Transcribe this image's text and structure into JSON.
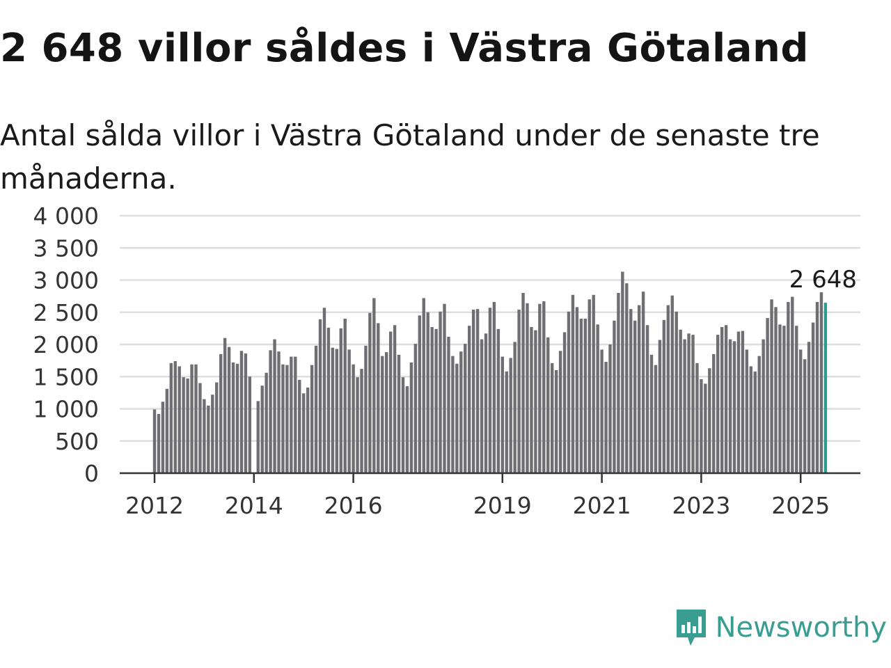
{
  "title": "2 648 villor såldes i Västra Götaland",
  "subtitle": "Antal sålda villor i Västra Götaland under de senaste tre månaderna.",
  "brand": "Newsworthy",
  "colors": {
    "bar": "#6f6e73",
    "highlight": "#2a9d8f",
    "brand": "#3a9d91",
    "grid": "#dedede"
  },
  "chart_data": {
    "type": "bar",
    "start": "2012-01",
    "values": [
      990,
      920,
      1110,
      1310,
      1710,
      1740,
      1660,
      1490,
      1470,
      1690,
      1690,
      1400,
      1150,
      1050,
      1220,
      1410,
      1850,
      2100,
      1960,
      1720,
      1700,
      1900,
      1860,
      1500,
      0,
      1120,
      1360,
      1560,
      1910,
      2080,
      1890,
      1690,
      1680,
      1810,
      1810,
      1450,
      1240,
      1330,
      1680,
      1980,
      2390,
      2570,
      2260,
      1950,
      1930,
      2250,
      2400,
      1920,
      1690,
      1490,
      1620,
      1980,
      2490,
      2720,
      2330,
      1820,
      1880,
      2200,
      2300,
      1840,
      1490,
      1350,
      1720,
      2010,
      2450,
      2720,
      2500,
      2270,
      2240,
      2510,
      2630,
      2120,
      1820,
      1700,
      1890,
      2010,
      2290,
      2540,
      2550,
      2080,
      2170,
      2570,
      2660,
      2240,
      1810,
      1580,
      1790,
      2040,
      2540,
      2800,
      2640,
      2270,
      2220,
      2630,
      2670,
      2110,
      1710,
      1600,
      1900,
      2190,
      2510,
      2770,
      2580,
      2400,
      2400,
      2700,
      2770,
      2310,
      1920,
      1730,
      2000,
      2370,
      2800,
      3130,
      2950,
      2550,
      2370,
      2610,
      2820,
      2300,
      1840,
      1680,
      2070,
      2380,
      2610,
      2760,
      2510,
      2230,
      2080,
      2170,
      2150,
      1710,
      1460,
      1390,
      1630,
      1850,
      2150,
      2270,
      2300,
      2080,
      2050,
      2200,
      2210,
      1920,
      1660,
      1580,
      1820,
      2080,
      2410,
      2700,
      2580,
      2310,
      2290,
      2660,
      2740,
      2290,
      1920,
      1770,
      2040,
      2340,
      2660,
      2810,
      2648
    ],
    "highlight_last": true,
    "annotation": "2 648",
    "ylim": [
      0,
      4000
    ],
    "yticks": [
      0,
      500,
      1000,
      1500,
      2000,
      2500,
      3000,
      3500,
      4000
    ],
    "ytick_labels": [
      "0",
      "500",
      "1 000",
      "1 500",
      "2 000",
      "2 500",
      "3 000",
      "3 500",
      "4 000"
    ],
    "xticks": [
      {
        "label": "2012",
        "index": 0
      },
      {
        "label": "2014",
        "index": 24
      },
      {
        "label": "2016",
        "index": 48
      },
      {
        "label": "2019",
        "index": 84
      },
      {
        "label": "2021",
        "index": 108
      },
      {
        "label": "2023",
        "index": 132
      },
      {
        "label": "2025",
        "index": 156
      }
    ],
    "xlabel": "",
    "ylabel": "",
    "grid": true
  }
}
